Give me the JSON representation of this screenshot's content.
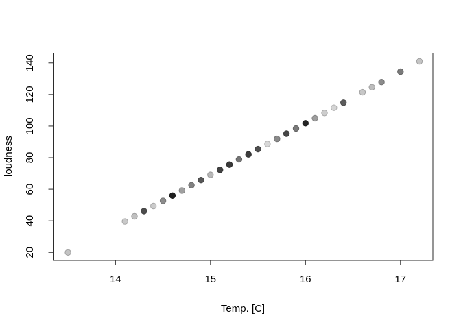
{
  "chart_data": {
    "type": "scatter",
    "title": "",
    "xlabel": "Temp. [C]",
    "ylabel": "loudness",
    "x_ticks": [
      14,
      15,
      16,
      17
    ],
    "y_ticks": [
      20,
      40,
      60,
      80,
      100,
      120,
      140
    ],
    "xlim": [
      13.344,
      17.341
    ],
    "ylim": [
      14.9,
      146.2
    ],
    "grid": false,
    "legend_position": "none",
    "marker": "filled-circle",
    "points": [
      {
        "x": 13.5,
        "y": 20.0,
        "color": "#c3c3c3"
      },
      {
        "x": 14.1,
        "y": 39.6,
        "color": "#c9c9c9"
      },
      {
        "x": 14.2,
        "y": 42.9,
        "color": "#c0c0c0"
      },
      {
        "x": 14.3,
        "y": 46.2,
        "color": "#4d4d4d"
      },
      {
        "x": 14.4,
        "y": 49.4,
        "color": "#cbcbcb"
      },
      {
        "x": 14.5,
        "y": 52.7,
        "color": "#8c8c8c"
      },
      {
        "x": 14.6,
        "y": 56.0,
        "color": "#202020"
      },
      {
        "x": 14.7,
        "y": 59.2,
        "color": "#a0a0a0"
      },
      {
        "x": 14.8,
        "y": 62.5,
        "color": "#828282"
      },
      {
        "x": 14.9,
        "y": 65.8,
        "color": "#565656"
      },
      {
        "x": 15.0,
        "y": 69.1,
        "color": "#b8b8b8"
      },
      {
        "x": 15.1,
        "y": 72.3,
        "color": "#424242"
      },
      {
        "x": 15.2,
        "y": 75.6,
        "color": "#3a3a3a"
      },
      {
        "x": 15.3,
        "y": 78.9,
        "color": "#757575"
      },
      {
        "x": 15.4,
        "y": 82.1,
        "color": "#3c3c3c"
      },
      {
        "x": 15.5,
        "y": 85.4,
        "color": "#4f4f4f"
      },
      {
        "x": 15.6,
        "y": 88.7,
        "color": "#d8d8d8"
      },
      {
        "x": 15.7,
        "y": 91.9,
        "color": "#8a8a8a"
      },
      {
        "x": 15.8,
        "y": 95.2,
        "color": "#464646"
      },
      {
        "x": 15.9,
        "y": 98.5,
        "color": "#7a7a7a"
      },
      {
        "x": 16.0,
        "y": 101.8,
        "color": "#242424"
      },
      {
        "x": 16.1,
        "y": 105.0,
        "color": "#9e9e9e"
      },
      {
        "x": 16.2,
        "y": 108.3,
        "color": "#cdcdcd"
      },
      {
        "x": 16.3,
        "y": 111.6,
        "color": "#d5d5d5"
      },
      {
        "x": 16.4,
        "y": 114.8,
        "color": "#5c5c5c"
      },
      {
        "x": 16.6,
        "y": 121.4,
        "color": "#c7c7c7"
      },
      {
        "x": 16.7,
        "y": 124.6,
        "color": "#bdbdbd"
      },
      {
        "x": 16.8,
        "y": 127.9,
        "color": "#8c8c8c"
      },
      {
        "x": 17.0,
        "y": 134.5,
        "color": "#7a7a7a"
      },
      {
        "x": 17.2,
        "y": 141.0,
        "color": "#c4c4c4"
      }
    ]
  },
  "colors": {
    "background": "#ffffff",
    "axis_line": "#2b2b2b",
    "text": "#000000"
  }
}
